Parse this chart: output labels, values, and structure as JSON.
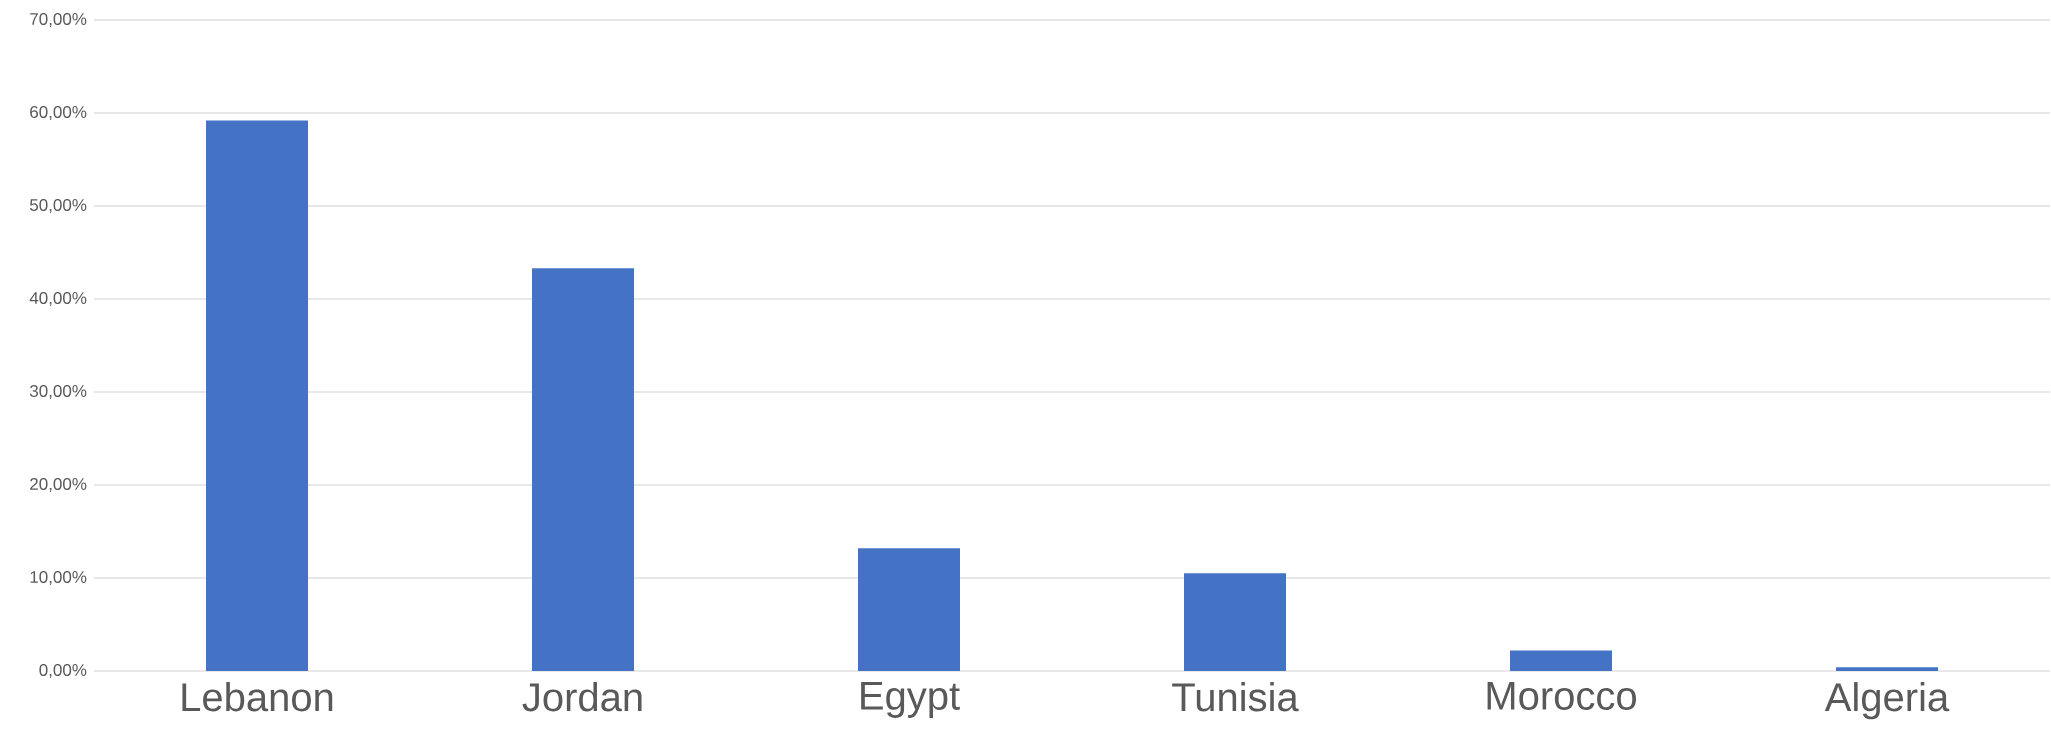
{
  "chart_data": {
    "type": "bar",
    "categories": [
      "Lebanon",
      "Jordan",
      "Egypt",
      "Tunisia",
      "Morocco",
      "Algeria"
    ],
    "values": [
      59.2,
      43.3,
      13.2,
      10.5,
      2.2,
      0.4
    ],
    "color": "#4472c4",
    "ylim": [
      0,
      70
    ],
    "yticks": [
      {
        "value": 0,
        "label": "0,00%"
      },
      {
        "value": 10,
        "label": "10,00%"
      },
      {
        "value": 20,
        "label": "20,00%"
      },
      {
        "value": 30,
        "label": "30,00%"
      },
      {
        "value": 40,
        "label": "40,00%"
      },
      {
        "value": 50,
        "label": "50,00%"
      },
      {
        "value": 60,
        "label": "60,00%"
      },
      {
        "value": 70,
        "label": "70,00%"
      }
    ],
    "grid": "y"
  }
}
